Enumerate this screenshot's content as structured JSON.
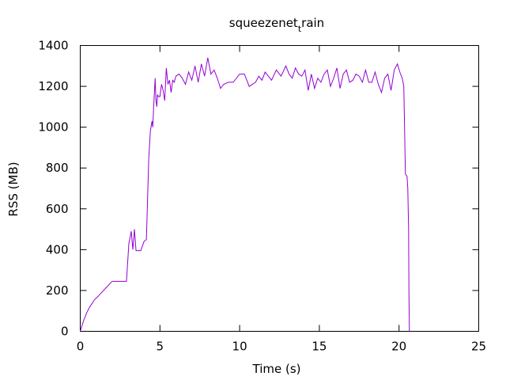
{
  "chart_data": {
    "type": "line",
    "title": "squeezenet",
    "title_subscript": "t",
    "title_suffix": "rain",
    "xlabel": "Time (s)",
    "ylabel": "RSS (MB)",
    "xlim": [
      0,
      25
    ],
    "ylim": [
      0,
      1400
    ],
    "xticks": [
      0,
      5,
      10,
      15,
      20,
      25
    ],
    "yticks": [
      0,
      200,
      400,
      600,
      800,
      1000,
      1200,
      1400
    ],
    "grid": false,
    "legend": "none",
    "colors": {
      "line": "#9400d3",
      "axis": "#000000"
    },
    "series": [
      {
        "x": [
          0,
          0.2,
          0.4,
          0.6,
          0.9,
          1.1,
          1.4,
          1.7,
          2.0,
          2.3,
          2.9,
          3.05,
          3.2,
          3.3,
          3.4,
          3.5,
          3.8,
          4.0,
          4.15,
          4.3,
          4.4,
          4.5,
          4.55,
          4.6,
          4.7,
          4.75,
          4.8,
          4.85,
          4.9,
          5.0,
          5.1,
          5.2,
          5.3,
          5.4,
          5.5,
          5.6,
          5.7,
          5.8,
          5.9,
          6.0,
          6.2,
          6.4,
          6.6,
          6.8,
          7.0,
          7.2,
          7.4,
          7.6,
          7.8,
          8.0,
          8.2,
          8.4,
          8.6,
          8.8,
          9.0,
          9.3,
          9.6,
          10.0,
          10.3,
          10.6,
          11.0,
          11.2,
          11.4,
          11.6,
          12.0,
          12.3,
          12.6,
          12.9,
          13.1,
          13.3,
          13.5,
          13.7,
          13.9,
          14.1,
          14.3,
          14.5,
          14.7,
          14.9,
          15.1,
          15.3,
          15.5,
          15.7,
          15.9,
          16.1,
          16.3,
          16.5,
          16.7,
          16.9,
          17.1,
          17.3,
          17.5,
          17.7,
          17.9,
          18.1,
          18.3,
          18.5,
          18.7,
          18.9,
          19.1,
          19.3,
          19.5,
          19.7,
          19.9,
          20.05,
          20.2,
          20.3,
          20.4,
          20.5,
          20.55,
          20.6,
          20.62,
          20.65
        ],
        "values": [
          0,
          50,
          90,
          120,
          155,
          170,
          195,
          220,
          245,
          245,
          245,
          430,
          490,
          400,
          500,
          395,
          395,
          440,
          450,
          850,
          980,
          1030,
          1000,
          1090,
          1240,
          1130,
          1100,
          1160,
          1150,
          1150,
          1210,
          1180,
          1130,
          1290,
          1210,
          1230,
          1170,
          1230,
          1220,
          1250,
          1260,
          1240,
          1210,
          1270,
          1230,
          1300,
          1220,
          1310,
          1250,
          1340,
          1260,
          1280,
          1240,
          1190,
          1210,
          1220,
          1220,
          1260,
          1260,
          1200,
          1220,
          1250,
          1230,
          1270,
          1230,
          1280,
          1250,
          1300,
          1260,
          1240,
          1290,
          1260,
          1250,
          1280,
          1180,
          1260,
          1190,
          1240,
          1220,
          1260,
          1280,
          1200,
          1240,
          1290,
          1190,
          1260,
          1280,
          1220,
          1230,
          1260,
          1250,
          1220,
          1280,
          1220,
          1220,
          1270,
          1210,
          1170,
          1240,
          1260,
          1180,
          1280,
          1310,
          1270,
          1240,
          1200,
          770,
          760,
          700,
          500,
          200,
          0
        ]
      }
    ]
  }
}
